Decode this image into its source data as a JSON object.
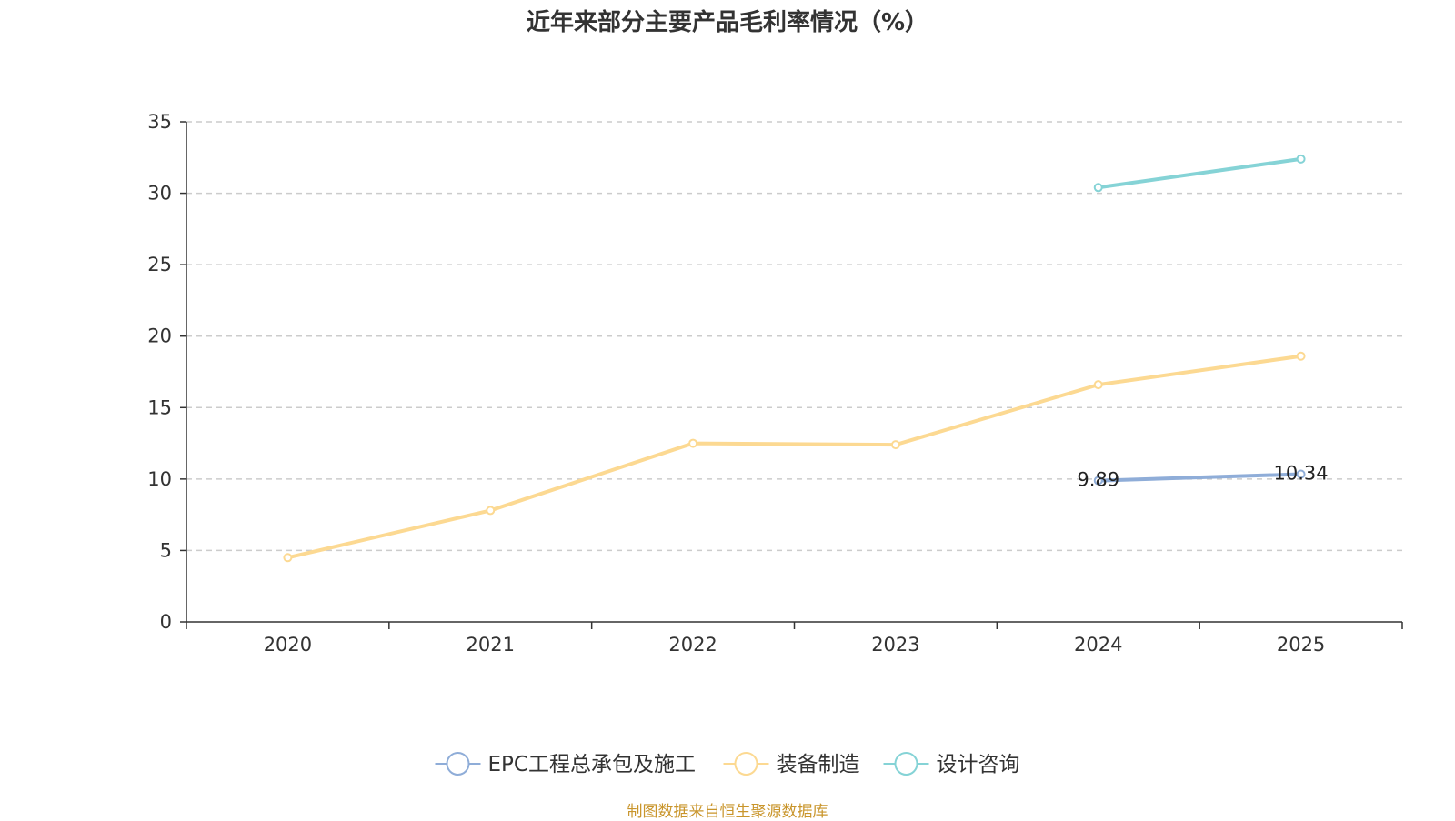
{
  "chart_data": {
    "type": "line",
    "title": "近年来部分主要产品毛利率情况（%）",
    "source": "制图数据来自恒生聚源数据库",
    "categories": [
      "2020",
      "2021",
      "2022",
      "2023",
      "2024",
      "2025"
    ],
    "ylim": [
      0,
      35
    ],
    "yticks": [
      0,
      5,
      10,
      15,
      20,
      25,
      30,
      35
    ],
    "grid": true,
    "legend_position": "bottom-center",
    "series": [
      {
        "name": "EPC工程总承包及施工",
        "color": "#8fadd8",
        "values": [
          null,
          null,
          null,
          null,
          9.89,
          10.34
        ],
        "labels": [
          null,
          null,
          null,
          null,
          "9.89",
          "10.34"
        ]
      },
      {
        "name": "装备制造",
        "color": "#fcd992",
        "values": [
          4.5,
          7.8,
          12.5,
          12.4,
          16.6,
          18.6
        ],
        "labels": [
          null,
          null,
          null,
          null,
          null,
          null
        ]
      },
      {
        "name": "设计咨询",
        "color": "#85d3d6",
        "values": [
          null,
          null,
          null,
          null,
          30.4,
          32.4
        ],
        "labels": [
          null,
          null,
          null,
          null,
          null,
          null
        ]
      }
    ]
  }
}
